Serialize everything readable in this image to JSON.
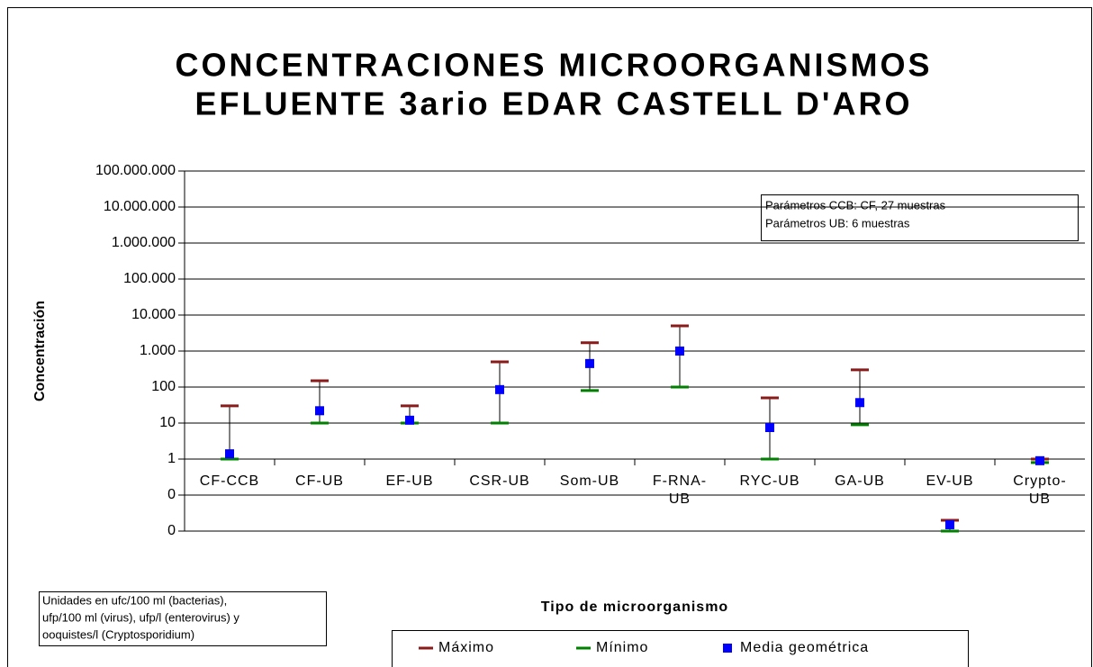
{
  "chart_data": {
    "type": "errorbar",
    "title": [
      "CONCENTRACIONES MICROORGANISMOS",
      "EFLUENTE 3ario EDAR CASTELL D'ARO"
    ],
    "y_label": "Concentración",
    "x_label": "Tipo de microorganismo",
    "categories": [
      "CF-CCB",
      "CF-UB",
      "EF-UB",
      "CSR-UB",
      "Som-UB",
      "F-RNA-UB",
      "RYC-UB",
      "GA-UB",
      "EV-UB",
      "Crypto-UB"
    ],
    "series": [
      {
        "name": "Máximo",
        "color": "#8b1a1a",
        "values": [
          30,
          150,
          30,
          500,
          1700,
          5000,
          50,
          300,
          0.02,
          1
        ]
      },
      {
        "name": "Mínimo",
        "color": "#008000",
        "values": [
          1,
          10,
          10,
          10,
          80,
          100,
          1,
          9,
          0.01,
          0.8
        ]
      },
      {
        "name": "Media geométrica",
        "color": "#0000ff",
        "values": [
          1.4,
          22,
          12,
          85,
          450,
          1000,
          7.5,
          37,
          0.015,
          0.9
        ]
      }
    ],
    "log": true,
    "ylim": [
      0.01,
      100000000
    ],
    "yticks": [
      {
        "value": 0.01,
        "label": "0"
      },
      {
        "value": 0.1,
        "label": "0"
      },
      1,
      10,
      100,
      {
        "value": 1000,
        "label": "1.000"
      },
      {
        "value": 10000,
        "label": "10.000"
      },
      {
        "value": 100000,
        "label": "100.000"
      },
      {
        "value": 1000000,
        "label": "1.000.000"
      },
      {
        "value": 10000000,
        "label": "10.000.000"
      },
      {
        "value": 100000000,
        "label": "100.000.000"
      }
    ],
    "grid": true,
    "annotations": [
      [
        "Parámetros CCB: CF, 27 muestras",
        "Parámetros UB: 6 muestras"
      ],
      [
        "Unidades en ufc/100 ml (bacterias),",
        "ufp/100 ml (virus), ufp/l (enterovirus) y",
        "ooquistes/l (Cryptosporidium)"
      ]
    ],
    "legend": "bottom"
  }
}
